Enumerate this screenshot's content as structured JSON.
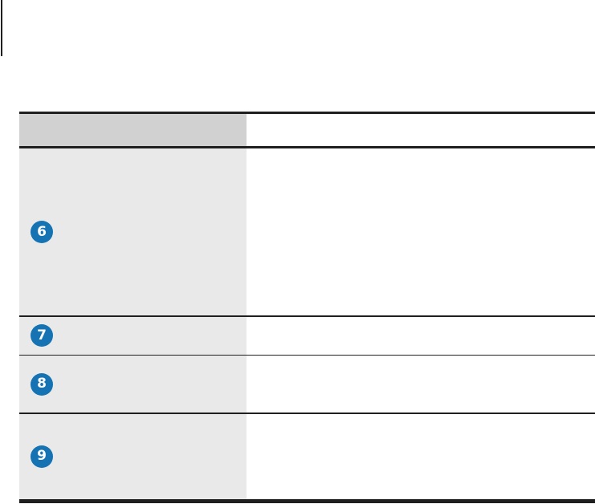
{
  "colors": {
    "accent_blue": "#1573b4",
    "header_gray": "#d1d1d1",
    "row_gray": "#e9e9e9",
    "line_black": "#1f1f1f",
    "page_background": "#ffffff",
    "badge_text": "#ffffff"
  },
  "decorations": {
    "page_edge_line": "vertical-rule-top-left"
  },
  "table": {
    "header": {
      "label": ""
    },
    "rows": [
      {
        "number": "6",
        "description": ""
      },
      {
        "number": "7",
        "description": ""
      },
      {
        "number": "8",
        "description": ""
      },
      {
        "number": "9",
        "description": ""
      }
    ]
  }
}
